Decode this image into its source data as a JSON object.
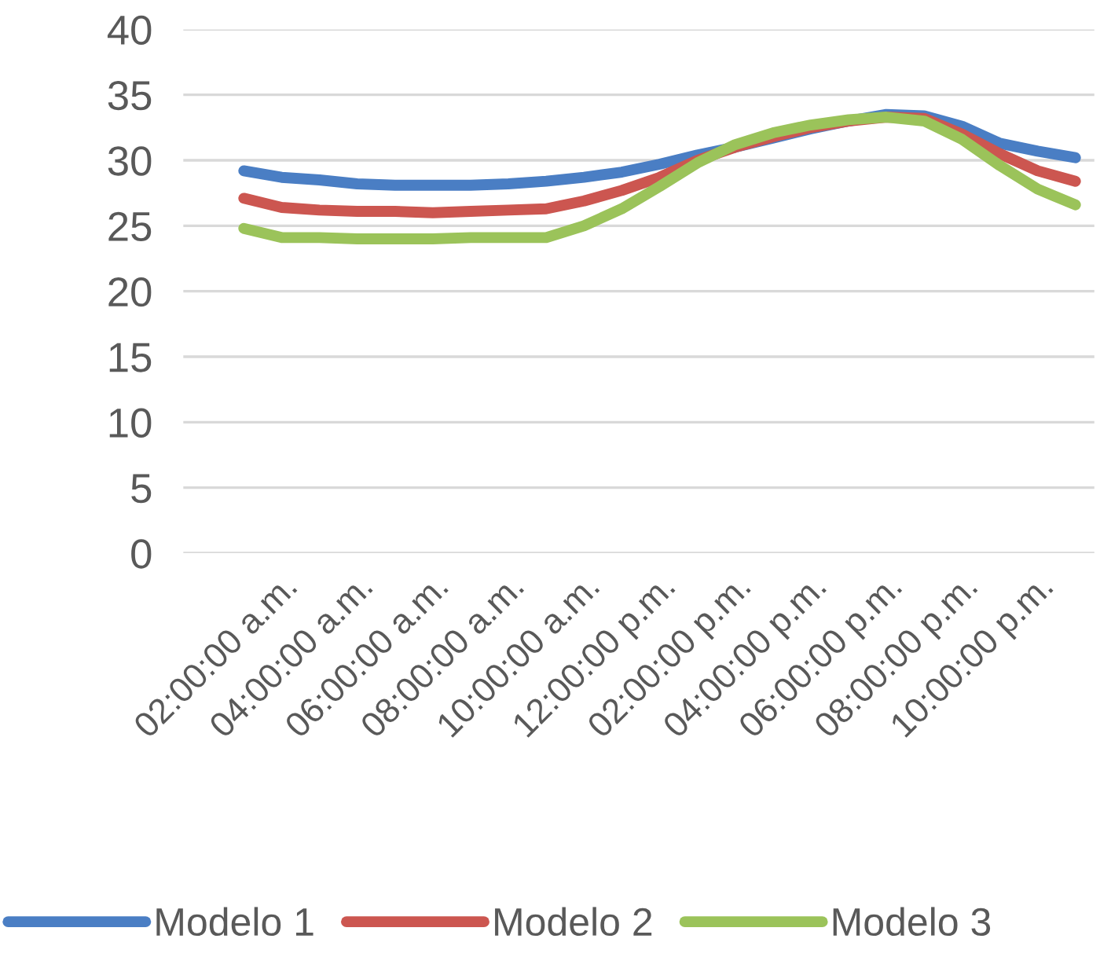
{
  "chart_data": {
    "type": "line",
    "categories": [
      null,
      "02:00:00 a.m.",
      null,
      "04:00:00 a.m.",
      null,
      "06:00:00 a.m.",
      null,
      "08:00:00 a.m.",
      null,
      "10:00:00 a.m.",
      null,
      "12:00:00 p.m.",
      null,
      "02:00:00 p.m.",
      null,
      "04:00:00 p.m.",
      null,
      "06:00:00 p.m.",
      null,
      "08:00:00 p.m.",
      null,
      "10:00:00 p.m.",
      null
    ],
    "series": [
      {
        "name": "Modelo 1",
        "color": "#4a7ec4",
        "values": [
          29.2,
          28.7,
          28.5,
          28.2,
          28.1,
          28.1,
          28.1,
          28.2,
          28.4,
          28.7,
          29.1,
          29.7,
          30.4,
          31.0,
          31.7,
          32.4,
          33.0,
          33.5,
          33.4,
          32.6,
          31.3,
          30.7,
          30.2
        ]
      },
      {
        "name": "Modelo 2",
        "color": "#cc5650",
        "values": [
          27.1,
          26.4,
          26.2,
          26.1,
          26.1,
          26.0,
          26.1,
          26.2,
          26.3,
          26.9,
          27.7,
          28.7,
          30.0,
          31.0,
          31.8,
          32.5,
          33.0,
          33.3,
          33.2,
          32.0,
          30.5,
          29.2,
          28.4
        ]
      },
      {
        "name": "Modelo 3",
        "color": "#9bc35a",
        "values": [
          24.8,
          24.1,
          24.1,
          24.0,
          24.0,
          24.0,
          24.1,
          24.1,
          24.1,
          25.0,
          26.3,
          28.0,
          29.8,
          31.2,
          32.1,
          32.7,
          33.1,
          33.3,
          33.0,
          31.6,
          29.6,
          27.8,
          26.6
        ]
      }
    ],
    "ylim": [
      0,
      40
    ],
    "yticks": [
      0,
      5,
      10,
      15,
      20,
      25,
      30,
      35,
      40
    ],
    "grid": "y",
    "legend": "bottom",
    "marker": "none",
    "line_style": "solid"
  }
}
